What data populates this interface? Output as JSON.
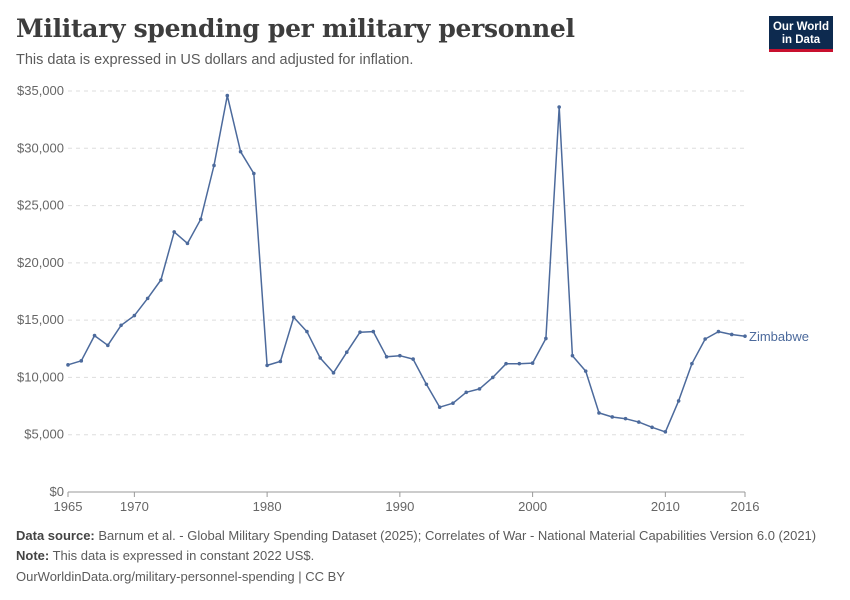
{
  "header": {
    "title": "Military spending per military personnel",
    "subtitle": "This data is expressed in US dollars and adjusted for inflation.",
    "logo_line1": "Our World",
    "logo_line2": "in Data"
  },
  "footer": {
    "source_label": "Data source:",
    "source_text": "Barnum et al. - Global Military Spending Dataset (2025); Correlates of War - National Material Capabilities Version 6.0 (2021)",
    "note_label": "Note:",
    "note_text": "This data is expressed in constant 2022 US$.",
    "url_text": "OurWorldinData.org/military-personnel-spending | CC BY"
  },
  "colors": {
    "series": "#4c6a9c",
    "grid": "#dddddd",
    "logo_bg": "#0d2a4f",
    "logo_accent": "#c8102e"
  },
  "chart_data": {
    "type": "line",
    "title": "Military spending per military personnel",
    "xlabel": "",
    "ylabel": "",
    "xlim": [
      1965,
      2016
    ],
    "ylim": [
      0,
      35000
    ],
    "grid": true,
    "y_ticks": [
      0,
      5000,
      10000,
      15000,
      20000,
      25000,
      30000,
      35000
    ],
    "y_tick_labels": [
      "$0",
      "$5,000",
      "$10,000",
      "$15,000",
      "$20,000",
      "$25,000",
      "$30,000",
      "$35,000"
    ],
    "x_ticks": [
      1965,
      1970,
      1980,
      1990,
      2000,
      2010,
      2016
    ],
    "x_tick_labels": [
      "1965",
      "1970",
      "1980",
      "1990",
      "2000",
      "2010",
      "2016"
    ],
    "series": [
      {
        "name": "Zimbabwe",
        "x": [
          1965,
          1966,
          1967,
          1968,
          1969,
          1970,
          1971,
          1972,
          1973,
          1974,
          1975,
          1976,
          1977,
          1978,
          1979,
          1980,
          1981,
          1982,
          1983,
          1984,
          1985,
          1986,
          1987,
          1988,
          1989,
          1990,
          1991,
          1992,
          1993,
          1994,
          1995,
          1996,
          1997,
          1998,
          1999,
          2000,
          2001,
          2002,
          2003,
          2004,
          2005,
          2006,
          2007,
          2008,
          2009,
          2010,
          2011,
          2012,
          2013,
          2014,
          2015,
          2016
        ],
        "y": [
          11100,
          11450,
          13650,
          12800,
          14550,
          15400,
          16900,
          18500,
          22700,
          21700,
          23800,
          28500,
          34600,
          29700,
          27800,
          11050,
          11400,
          15250,
          14000,
          11700,
          10400,
          12200,
          13950,
          14000,
          11800,
          11900,
          11600,
          9400,
          7400,
          7750,
          8700,
          9000,
          10000,
          11200,
          11200,
          11250,
          13400,
          33600,
          11900,
          10550,
          6900,
          6550,
          6400,
          6100,
          5650,
          5250,
          7950,
          11200,
          13350,
          14000,
          13750,
          13600
        ]
      }
    ]
  }
}
